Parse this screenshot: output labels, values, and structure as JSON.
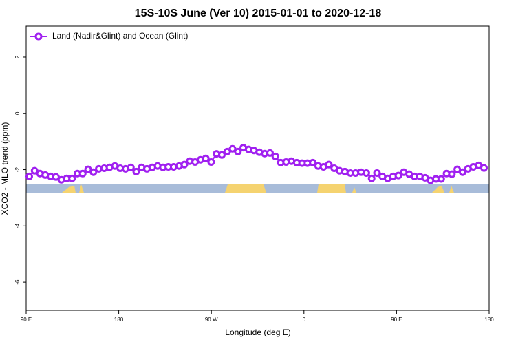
{
  "chart_data": {
    "type": "line",
    "title": "15S-10S June (Ver 10)   2015-01-01 to 2020-12-18",
    "x_label": "Longitude (deg E)",
    "y_label": "XCO2 - MLO trend (ppm)",
    "xlim": [
      90,
      540
    ],
    "xticks": [
      {
        "value": 90,
        "label": "90 E"
      },
      180,
      {
        "value": 270,
        "label": "90 W"
      },
      {
        "value": 360,
        "label": "0"
      },
      {
        "value": 450,
        "label": "90 E"
      },
      {
        "value": 540,
        "label": "180"
      }
    ],
    "ylim": [
      -7,
      3.1
    ],
    "yticks": [
      2,
      0,
      -2,
      -4,
      -6
    ],
    "legend": "top-left",
    "x": [
      93,
      98.2,
      103.4,
      108.6,
      113.8,
      119,
      124.2,
      129.4,
      134.6,
      139.8,
      145,
      150.2,
      155.4,
      160.6,
      165.8,
      171,
      176.2,
      181.4,
      186.6,
      191.8,
      197,
      202.2,
      207.4,
      212.6,
      217.8,
      223,
      228.2,
      233.4,
      238.6,
      243.8,
      249,
      254.2,
      259.4,
      264.6,
      269.8,
      275,
      280.2,
      285.4,
      290.6,
      295.8,
      301,
      306.2,
      311.4,
      316.6,
      321.8,
      327,
      332.2,
      337.4,
      342.6,
      347.8,
      353,
      358.2,
      363.4,
      368.6,
      373.8,
      379,
      384.2,
      389.4,
      394.6,
      399.8,
      405,
      410.2,
      415.4,
      420.6,
      425.8,
      431,
      436.2,
      441.4,
      446.6,
      451.8,
      457,
      462.2,
      467.4,
      472.6,
      477.8,
      483,
      488.2,
      493.4,
      498.6,
      503.8,
      509,
      514.2,
      519.4,
      524.6,
      529.8,
      535
    ],
    "series": [
      {
        "name": "Land (Nadir&Glint) and Ocean (Glint)",
        "color": "#a020f0",
        "values": [
          -2.24,
          -2.04,
          -2.14,
          -2.19,
          -2.24,
          -2.26,
          -2.36,
          -2.31,
          -2.31,
          -2.14,
          -2.14,
          -1.99,
          -2.09,
          -1.97,
          -1.95,
          -1.92,
          -1.87,
          -1.95,
          -1.97,
          -1.92,
          -2.07,
          -1.92,
          -1.97,
          -1.92,
          -1.87,
          -1.92,
          -1.9,
          -1.9,
          -1.87,
          -1.82,
          -1.7,
          -1.73,
          -1.65,
          -1.6,
          -1.73,
          -1.44,
          -1.48,
          -1.36,
          -1.26,
          -1.36,
          -1.22,
          -1.28,
          -1.32,
          -1.38,
          -1.43,
          -1.41,
          -1.53,
          -1.75,
          -1.73,
          -1.7,
          -1.75,
          -1.77,
          -1.77,
          -1.75,
          -1.87,
          -1.9,
          -1.82,
          -1.95,
          -2.04,
          -2.07,
          -2.12,
          -2.12,
          -2.09,
          -2.12,
          -2.31,
          -2.12,
          -2.24,
          -2.31,
          -2.24,
          -2.21,
          -2.09,
          -2.16,
          -2.24,
          -2.24,
          -2.29,
          -2.38,
          -2.33,
          -2.33,
          -2.14,
          -2.16,
          -1.99,
          -2.09,
          -1.97,
          -1.9,
          -1.85,
          -1.94
        ]
      }
    ]
  }
}
